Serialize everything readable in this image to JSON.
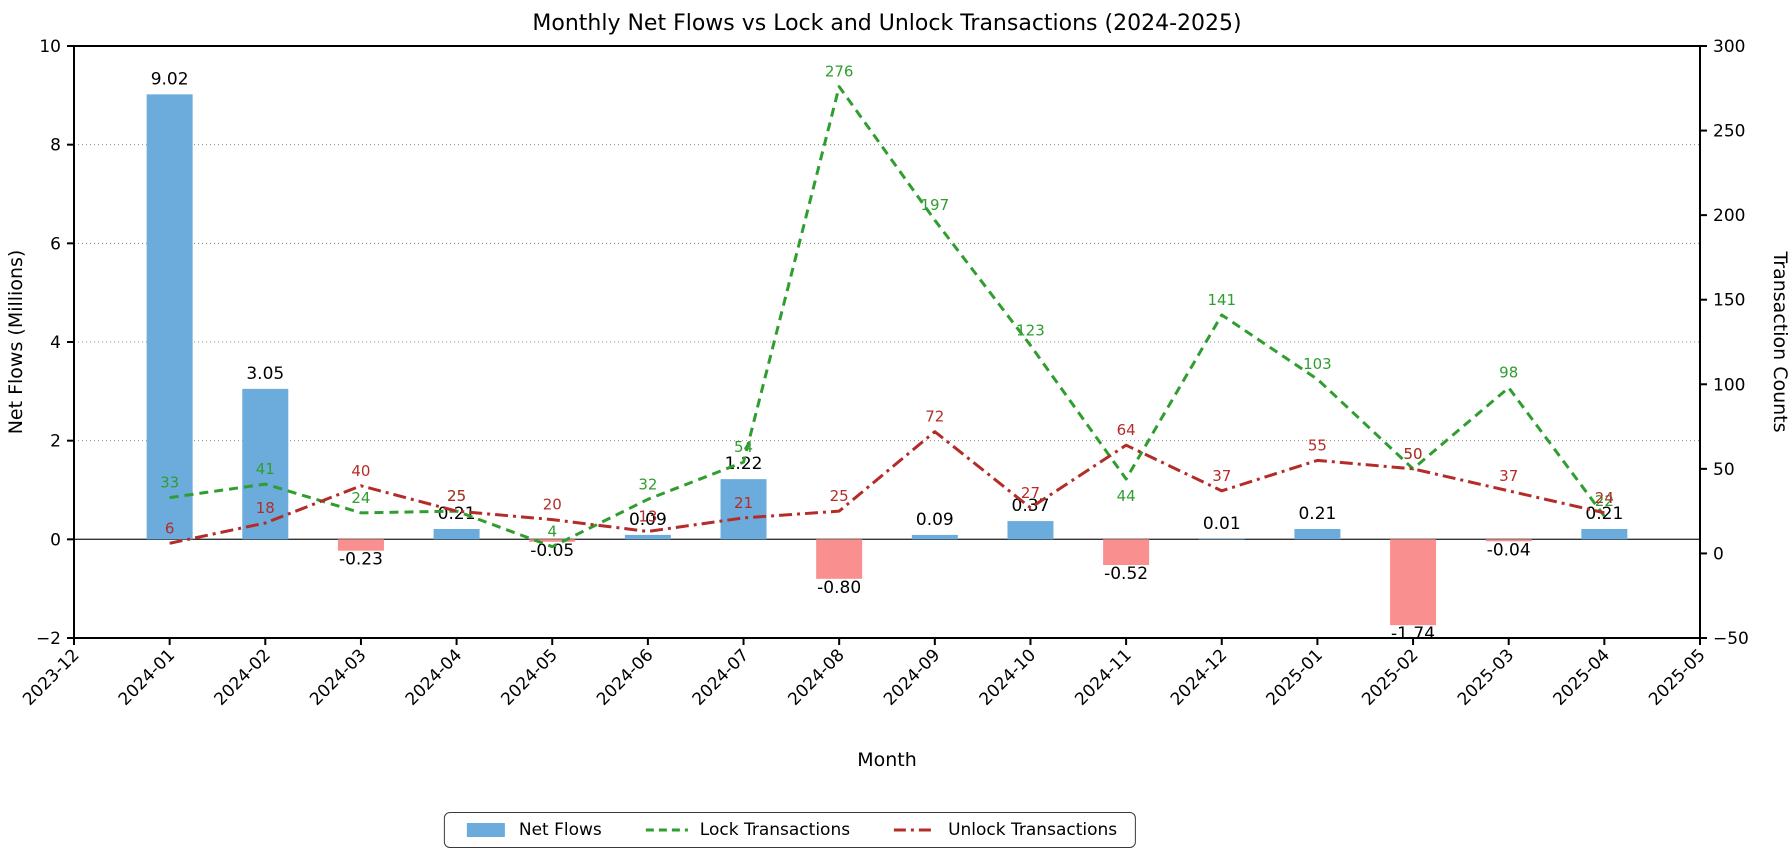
{
  "title": "Monthly Net Flows vs Lock and Unlock Transactions (2024-2025)",
  "axes": {
    "x_label": "Month",
    "y_left_label": "Net Flows (Millions)",
    "y_right_label": "Transaction Counts",
    "x_tick_labels": [
      "2023-12",
      "2024-01",
      "2024-02",
      "2024-03",
      "2024-04",
      "2024-05",
      "2024-06",
      "2024-07",
      "2024-08",
      "2024-09",
      "2024-10",
      "2024-11",
      "2024-12",
      "2025-01",
      "2025-02",
      "2025-03",
      "2025-04",
      "2025-05"
    ],
    "y_left_ticks": [
      -2,
      0,
      2,
      4,
      6,
      8,
      10
    ],
    "y_right_ticks": [
      -50,
      0,
      50,
      100,
      150,
      200,
      250,
      300
    ],
    "y_left_range": [
      -2,
      10
    ],
    "y_right_range": [
      -50,
      300
    ],
    "grid_values_left": [
      2,
      4,
      6,
      8
    ]
  },
  "colors": {
    "bar_positive": "#6cacdc",
    "bar_negative": "#f98f8f",
    "lock_line": "#2f9e2f",
    "unlock_line": "#b42c28",
    "bar_label": "#000000",
    "axis_text": "#000000",
    "gridline": "#888888",
    "zero_line": "#333333",
    "spine": "#000000"
  },
  "legend": {
    "items": [
      {
        "label": "Net Flows",
        "swatch": "bar",
        "color": "#6cacdc"
      },
      {
        "label": "Lock Transactions",
        "swatch": "dashed",
        "color": "#2f9e2f"
      },
      {
        "label": "Unlock Transactions",
        "swatch": "dashdot",
        "color": "#b42c28"
      }
    ]
  },
  "chart_data": {
    "type": "combo-bar-line",
    "title": "Monthly Net Flows vs Lock and Unlock Transactions (2024-2025)",
    "xlabel": "Month",
    "ylabel_left": "Net Flows (Millions)",
    "ylabel_right": "Transaction Counts",
    "x_axis_extent": [
      "2023-12",
      "2025-05"
    ],
    "ylim_left": [
      -2,
      10
    ],
    "ylim_right": [
      -50,
      300
    ],
    "grid": "horizontal-dotted",
    "legend_position": "bottom-center",
    "categories": [
      "2024-01",
      "2024-02",
      "2024-03",
      "2024-04",
      "2024-05",
      "2024-06",
      "2024-07",
      "2024-08",
      "2024-09",
      "2024-10",
      "2024-11",
      "2024-12",
      "2025-01",
      "2025-02",
      "2025-03",
      "2025-04"
    ],
    "series": [
      {
        "name": "Net Flows",
        "type": "bar",
        "axis": "left",
        "values": [
          9.02,
          3.05,
          -0.23,
          0.21,
          -0.05,
          0.09,
          1.22,
          -0.8,
          0.09,
          0.37,
          -0.52,
          0.01,
          0.21,
          -1.74,
          -0.04,
          0.21
        ]
      },
      {
        "name": "Lock Transactions",
        "type": "line",
        "style": "dashed",
        "axis": "right",
        "values": [
          33,
          41,
          24,
          25,
          4,
          32,
          54,
          276,
          197,
          123,
          44,
          141,
          103,
          50,
          98,
          22
        ]
      },
      {
        "name": "Unlock Transactions",
        "type": "line",
        "style": "dashdot",
        "axis": "right",
        "values": [
          6,
          18,
          40,
          25,
          20,
          13,
          21,
          25,
          72,
          27,
          64,
          37,
          55,
          50,
          37,
          24
        ]
      }
    ]
  }
}
